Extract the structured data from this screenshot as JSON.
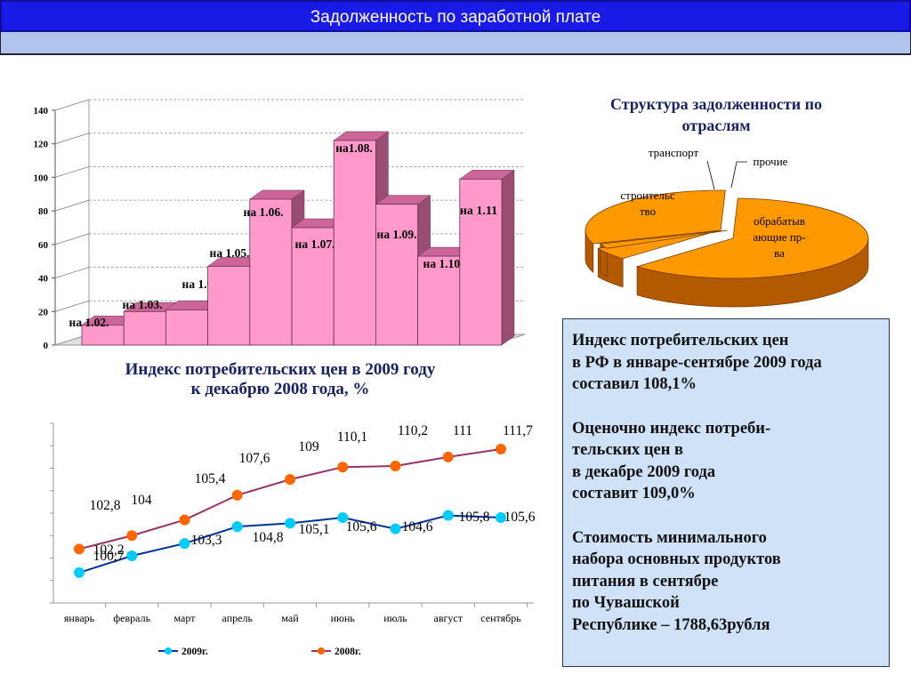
{
  "header": {
    "title": "Задолженность по заработной плате"
  },
  "chart_data": [
    {
      "type": "bar",
      "categories": [
        "на 1.02.",
        "на 1.03.",
        "на 1.04.",
        "на 1.05.",
        "на 1.06.",
        "на 1.07.",
        "на1.08.",
        "на 1.09.",
        "на 1.10.",
        "на 1.11"
      ],
      "values": [
        12,
        20,
        21,
        47,
        87,
        70,
        122,
        84,
        53,
        99
      ],
      "ylim": [
        0,
        140
      ],
      "yticks": [
        "0",
        "20",
        "40",
        "60",
        "80",
        "100",
        "120",
        "140"
      ],
      "grid": true,
      "bar_color": "#ff99cc"
    },
    {
      "type": "pie",
      "title": "Структура задолженности по\nотраслям",
      "slices": [
        {
          "label": "обрабатыв\nающие пр-\nва",
          "value": 0.62,
          "color": "#ff9900"
        },
        {
          "label": "строительс\nтво",
          "value": 0.31,
          "color": "#ff9900"
        },
        {
          "label": "транспорт",
          "value": 0.02,
          "color": "#ff9900"
        },
        {
          "label": "прочие",
          "value": 0.05,
          "color": "#ff9900"
        }
      ]
    },
    {
      "type": "line",
      "title": "Индекс потребительских цен в 2009 году\nк декабрю 2008 года, %",
      "categories": [
        "январь",
        "февраль",
        "март",
        "апрель",
        "май",
        "июнь",
        "июль",
        "август",
        "сентябрь"
      ],
      "ylim": [
        98,
        114
      ],
      "series": [
        {
          "name": "2009г.",
          "color": "#003399",
          "marker": "#00ccff",
          "values": [
            100.7,
            102.2,
            103.3,
            104.8,
            105.1,
            105.6,
            104.6,
            105.8,
            105.6
          ],
          "labels": [
            "100,7",
            "102,2",
            "103,3",
            "104,8",
            "105,1",
            "105,6",
            "104,6",
            "105,8",
            "105,6"
          ]
        },
        {
          "name": "2008г.",
          "color": "#993366",
          "marker": "#ff6600",
          "values": [
            102.8,
            104,
            105.4,
            107.6,
            109,
            110.1,
            110.2,
            111,
            111.7
          ],
          "labels": [
            "102,8",
            "104",
            "105,4",
            "107,6",
            "109",
            "110,1",
            "110,2",
            "111",
            "111,7"
          ]
        }
      ]
    }
  ],
  "info": {
    "p1": "Индекс потребительских цен\nв РФ в январе-сентябре  2009 года\nсоставил 108,1%",
    "p2": "Оценочно индекс потреби-\nтельских цен   в\n в декабре 2009 года\nсоставит  109,0%",
    "p3": "Стоимость минимального\nнабора основных продуктов\nпитания в сентябре\nпо Чувашской\nРеспублике  – 1788,63рубля"
  }
}
